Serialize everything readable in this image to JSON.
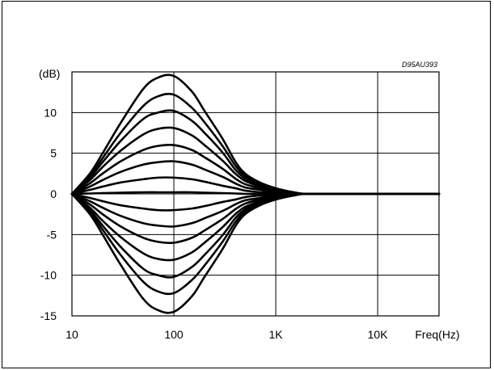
{
  "figure_id": "D95AU393",
  "chart_data": {
    "type": "line",
    "title": "",
    "xlabel": "Freq(Hz)",
    "ylabel": "(dB)",
    "x_scale": "log",
    "xlim": [
      10,
      40000
    ],
    "ylim": [
      -15,
      15
    ],
    "x_ticks": [
      {
        "value": 10,
        "label": "10"
      },
      {
        "value": 100,
        "label": "100"
      },
      {
        "value": 1000,
        "label": "1K"
      },
      {
        "value": 10000,
        "label": "10K"
      }
    ],
    "y_ticks": [
      {
        "value": 10,
        "label": "10"
      },
      {
        "value": 5,
        "label": "5"
      },
      {
        "value": 0,
        "label": "0"
      },
      {
        "value": -5,
        "label": "-5"
      },
      {
        "value": -10,
        "label": "-10"
      },
      {
        "value": -15,
        "label": "-15"
      }
    ],
    "grid": true,
    "x": [
      10,
      15,
      20,
      30,
      50,
      70,
      100,
      150,
      200,
      300,
      400,
      500,
      700,
      1000,
      1500,
      2000,
      5000,
      10000,
      40000
    ],
    "series": [
      {
        "values": [
          0,
          2.5,
          5.0,
          8.7,
          12.9,
          14.3,
          14.5,
          12.6,
          10.2,
          6.8,
          4.0,
          2.5,
          1.4,
          0.7,
          0.2,
          0,
          0,
          0,
          0
        ]
      },
      {
        "values": [
          0,
          2.2,
          4.4,
          7.5,
          10.8,
          12.0,
          12.2,
          10.6,
          8.8,
          5.9,
          3.5,
          2.2,
          1.2,
          0.6,
          0.2,
          0,
          0,
          0,
          0
        ]
      },
      {
        "values": [
          0,
          2.0,
          3.9,
          6.5,
          9.2,
          10.0,
          10.2,
          9.0,
          7.5,
          5.1,
          3.0,
          1.9,
          1.0,
          0.5,
          0.15,
          0,
          0,
          0,
          0
        ]
      },
      {
        "values": [
          0,
          1.7,
          3.3,
          5.3,
          7.3,
          8.0,
          8.1,
          7.2,
          6.0,
          4.1,
          2.5,
          1.6,
          0.9,
          0.4,
          0.1,
          0,
          0,
          0,
          0
        ]
      },
      {
        "values": [
          0,
          1.3,
          2.5,
          4.0,
          5.4,
          5.9,
          6.0,
          5.4,
          4.5,
          3.1,
          1.9,
          1.2,
          0.7,
          0.3,
          0.1,
          0,
          0,
          0,
          0
        ]
      },
      {
        "values": [
          0,
          0.9,
          1.7,
          2.7,
          3.6,
          3.9,
          4.0,
          3.6,
          3.0,
          2.1,
          1.3,
          0.8,
          0.5,
          0.2,
          0.05,
          0,
          0,
          0,
          0
        ]
      },
      {
        "values": [
          0,
          0.5,
          0.9,
          1.4,
          1.8,
          2.0,
          2.0,
          1.8,
          1.5,
          1.0,
          0.7,
          0.4,
          0.2,
          0.1,
          0,
          0,
          0,
          0,
          0
        ]
      },
      {
        "values": [
          0,
          0.05,
          0.1,
          0.15,
          0.2,
          0.2,
          0.2,
          0.2,
          0.15,
          0.1,
          0.05,
          0,
          0,
          0,
          0,
          0,
          0,
          0,
          0
        ]
      },
      {
        "values": [
          0,
          -0.5,
          -0.9,
          -1.4,
          -1.8,
          -2.0,
          -2.0,
          -1.8,
          -1.5,
          -1.0,
          -0.7,
          -0.4,
          -0.2,
          -0.1,
          0,
          0,
          0,
          0,
          0
        ]
      },
      {
        "values": [
          0,
          -0.9,
          -1.7,
          -2.7,
          -3.6,
          -3.9,
          -4.0,
          -3.6,
          -3.0,
          -2.1,
          -1.3,
          -0.8,
          -0.5,
          -0.2,
          -0.05,
          0,
          0,
          0,
          0
        ]
      },
      {
        "values": [
          0,
          -1.3,
          -2.5,
          -4.0,
          -5.4,
          -5.9,
          -6.0,
          -5.4,
          -4.5,
          -3.1,
          -1.9,
          -1.2,
          -0.7,
          -0.3,
          -0.1,
          0,
          0,
          0,
          0
        ]
      },
      {
        "values": [
          0,
          -1.7,
          -3.3,
          -5.3,
          -7.3,
          -8.0,
          -8.1,
          -7.2,
          -6.0,
          -4.1,
          -2.5,
          -1.6,
          -0.9,
          -0.4,
          -0.1,
          0,
          0,
          0,
          0
        ]
      },
      {
        "values": [
          0,
          -2.0,
          -3.9,
          -6.5,
          -9.2,
          -10.0,
          -10.2,
          -9.0,
          -7.5,
          -5.1,
          -3.0,
          -1.9,
          -1.0,
          -0.5,
          -0.15,
          0,
          0,
          0,
          0
        ]
      },
      {
        "values": [
          0,
          -2.2,
          -4.4,
          -7.5,
          -10.8,
          -12.0,
          -12.2,
          -10.6,
          -8.8,
          -5.9,
          -3.5,
          -2.2,
          -1.2,
          -0.6,
          -0.2,
          0,
          0,
          0,
          0
        ]
      },
      {
        "values": [
          0,
          -2.5,
          -5.0,
          -8.7,
          -12.9,
          -14.3,
          -14.5,
          -12.6,
          -10.2,
          -6.8,
          -4.0,
          -2.5,
          -1.4,
          -0.7,
          -0.2,
          0,
          0,
          0,
          0
        ]
      }
    ]
  }
}
